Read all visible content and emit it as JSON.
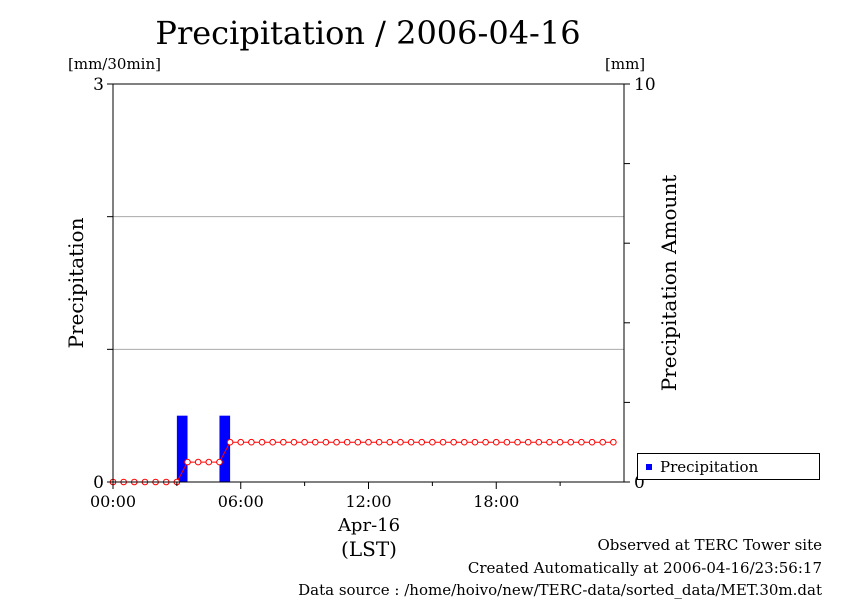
{
  "chart_data": {
    "type": "bar",
    "title": "Precipitation / 2006-04-16",
    "ylabel_left": "Precipitation",
    "yunit_left": "[mm/30min]",
    "ylim_left": [
      0,
      3
    ],
    "yticks_left": [
      "0",
      "3"
    ],
    "ylabel_right": "Precipitation Amount",
    "yunit_right": "[mm]",
    "ylim_right": [
      0,
      10
    ],
    "yticks_right": [
      "0",
      "10"
    ],
    "xlim_hours": [
      0,
      24
    ],
    "xticks": [
      {
        "hour": 0,
        "label": "00:00"
      },
      {
        "hour": 6,
        "label": "06:00"
      },
      {
        "hour": 12,
        "label": "12:00"
      },
      {
        "hour": 18,
        "label": "18:00"
      }
    ],
    "xlabel_date": "Apr-16",
    "xlabel_timezone": "(LST)",
    "grid": true,
    "series": [
      {
        "name": "Precipitation",
        "kind": "bar",
        "axis": "left",
        "color": "#0000ff",
        "bars": [
          {
            "time": "03:00-03:30",
            "start_hour": 3.0,
            "end_hour": 3.5,
            "value": 0.5
          },
          {
            "time": "05:00-05:30",
            "start_hour": 5.0,
            "end_hour": 5.5,
            "value": 0.5
          }
        ]
      },
      {
        "kind": "line-markers",
        "axis": "right",
        "color": "#ff0000",
        "start_hour": 0,
        "step_hours": 0.5,
        "values": [
          0,
          0,
          0,
          0,
          0,
          0,
          0,
          0.5,
          0.5,
          0.5,
          0.5,
          1,
          1,
          1,
          1,
          1,
          1,
          1,
          1,
          1,
          1,
          1,
          1,
          1,
          1,
          1,
          1,
          1,
          1,
          1,
          1,
          1,
          1,
          1,
          1,
          1,
          1,
          1,
          1,
          1,
          1,
          1,
          1,
          1,
          1,
          1,
          1,
          1
        ]
      }
    ],
    "legend": {
      "placement": "bottom-right, outside plot",
      "entries": [
        "Precipitation"
      ]
    }
  },
  "footer": {
    "observed": "Observed at TERC Tower site",
    "created": "Created Automatically at 2006-04-16/23:56:17",
    "source": "Data source : /home/hoivo/new/TERC-data/sorted_data/MET.30m.dat"
  }
}
